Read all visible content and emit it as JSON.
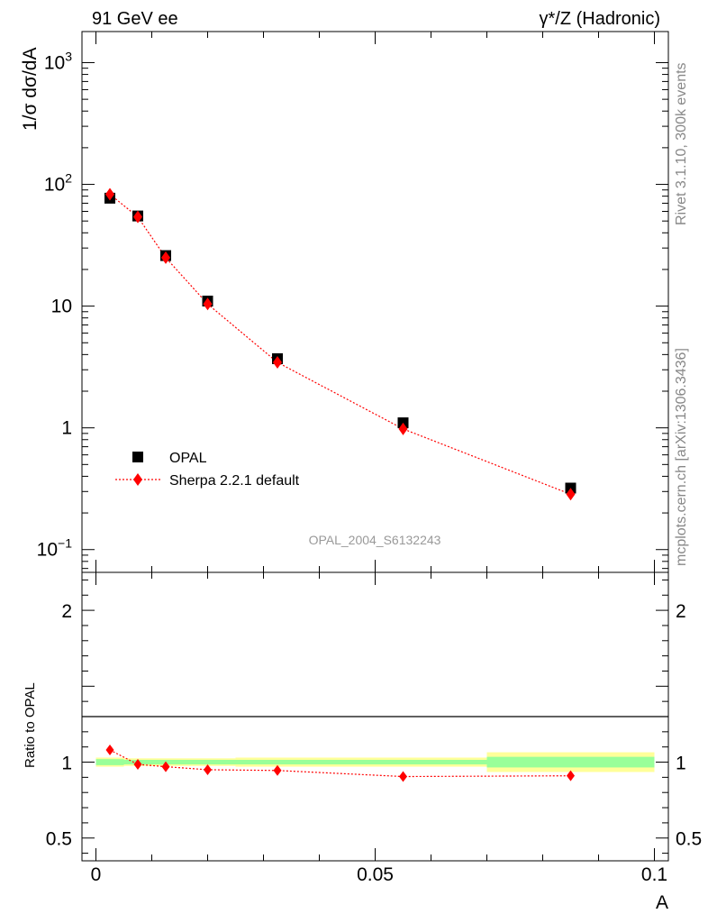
{
  "header": {
    "left_title": "91 GeV ee",
    "right_title": "γ*/Z (Hadronic)"
  },
  "side_labels": {
    "rivet": "Rivet 3.1.10,  300k events",
    "mcplots": "mcplots.cern.ch [arXiv:1306.3436]"
  },
  "analysis_label": "OPAL_2004_S6132243",
  "chart_data": [
    {
      "type": "scatter",
      "panel": "main",
      "ylabel": "1/σ dσ/dA",
      "xlabel": "",
      "yscale": "log",
      "ylim": [
        0.065,
        1800
      ],
      "xlim": [
        -0.0025,
        0.1025
      ],
      "yticks": [
        {
          "value": 1000,
          "label": "10",
          "sup": "3"
        },
        {
          "value": 100,
          "label": "10",
          "sup": "2"
        },
        {
          "value": 10,
          "label": "10",
          "sup": ""
        },
        {
          "value": 1,
          "label": "1",
          "sup": ""
        },
        {
          "value": 0.1,
          "label": "10",
          "sup": "−1"
        }
      ],
      "legend_position": "lower-left",
      "series": [
        {
          "name": "OPAL",
          "style": "data",
          "color": "#000000",
          "x": [
            0.0025,
            0.0075,
            0.0125,
            0.02,
            0.0325,
            0.055,
            0.085
          ],
          "y": [
            77,
            55,
            26,
            11,
            3.7,
            1.1,
            0.32
          ]
        },
        {
          "name": "Sherpa 2.2.1 default",
          "style": "mc",
          "color": "#ff0000",
          "x": [
            0.0025,
            0.0075,
            0.0125,
            0.02,
            0.0325,
            0.055,
            0.085
          ],
          "y": [
            83,
            54,
            25,
            10.4,
            3.45,
            0.98,
            0.285
          ]
        }
      ]
    },
    {
      "type": "line",
      "panel": "ratio",
      "ylabel": "Ratio to OPAL",
      "xlabel": "A",
      "ylim": [
        0.35,
        2.25
      ],
      "xlim": [
        -0.0025,
        0.1025
      ],
      "yticks": [
        {
          "value": 2,
          "label": "2"
        },
        {
          "value": 1,
          "label": "1"
        },
        {
          "value": 0.5,
          "label": "0.5"
        }
      ],
      "xticks": [
        {
          "value": 0,
          "label": "0"
        },
        {
          "value": 0.05,
          "label": "0.05"
        },
        {
          "value": 0.1,
          "label": "0.1"
        }
      ],
      "uncertainty_bands": [
        {
          "x0": 0.0,
          "x1": 0.005,
          "inner": [
            0.98,
            1.02
          ],
          "outer": [
            0.97,
            1.03
          ]
        },
        {
          "x0": 0.005,
          "x1": 0.01,
          "inner": [
            0.985,
            1.015
          ],
          "outer": [
            0.975,
            1.025
          ]
        },
        {
          "x0": 0.01,
          "x1": 0.015,
          "inner": [
            0.985,
            1.015
          ],
          "outer": [
            0.975,
            1.025
          ]
        },
        {
          "x0": 0.015,
          "x1": 0.025,
          "inner": [
            0.985,
            1.015
          ],
          "outer": [
            0.975,
            1.025
          ]
        },
        {
          "x0": 0.025,
          "x1": 0.04,
          "inner": [
            0.985,
            1.015
          ],
          "outer": [
            0.97,
            1.03
          ]
        },
        {
          "x0": 0.04,
          "x1": 0.07,
          "inner": [
            0.985,
            1.015
          ],
          "outer": [
            0.97,
            1.03
          ]
        },
        {
          "x0": 0.07,
          "x1": 0.1,
          "inner": [
            0.965,
            1.035
          ],
          "outer": [
            0.935,
            1.065
          ]
        }
      ],
      "series": [
        {
          "name": "Sherpa 2.2.1 default",
          "color": "#ff0000",
          "x": [
            0.0025,
            0.0075,
            0.0125,
            0.02,
            0.0325,
            0.055,
            0.085
          ],
          "y": [
            1.08,
            0.985,
            0.97,
            0.95,
            0.945,
            0.905,
            0.91
          ]
        }
      ]
    }
  ]
}
